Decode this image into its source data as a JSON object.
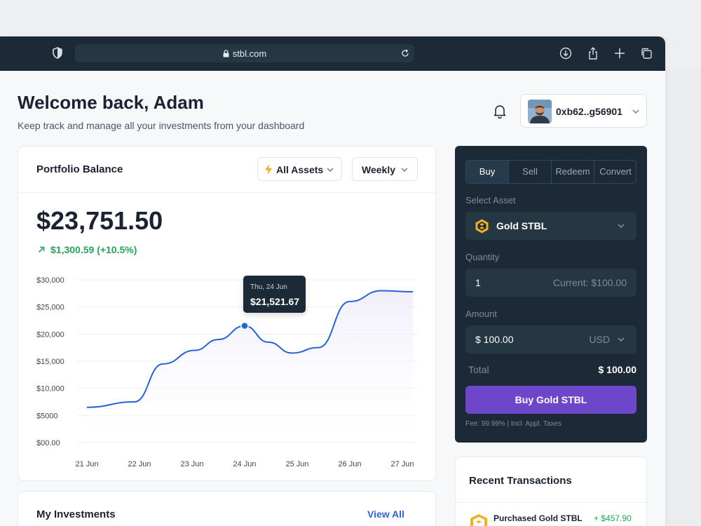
{
  "browser": {
    "url": "stbl.com"
  },
  "header": {
    "welcome": "Welcome back, Adam",
    "subtitle": "Keep track and manage all your investments from your dashboard",
    "wallet_address": "0xb62..g56901"
  },
  "portfolio": {
    "title": "Portfolio Balance",
    "asset_filter": "All Assets",
    "period_filter": "Weekly",
    "balance": "$23,751.50",
    "change": "$1,300.59 (+10.5%)"
  },
  "chart_data": {
    "type": "area",
    "x": [
      "21 Jun",
      "22 Jun",
      "23 Jun",
      "24 Jun",
      "25 Jun",
      "26 Jun",
      "27 Jun"
    ],
    "y_tick_labels": [
      "$30,000",
      "$25,000",
      "$20,000",
      "$15,000",
      "$10,000",
      "$5000",
      "$00.00"
    ],
    "y_ticks": [
      30000,
      25000,
      20000,
      15000,
      10000,
      5000,
      0
    ],
    "ylim": [
      0,
      30000
    ],
    "series": [
      {
        "points": [
          [
            0,
            6500
          ],
          [
            0.9,
            7500
          ],
          [
            1.45,
            14500
          ],
          [
            2.05,
            17000
          ],
          [
            2.5,
            19000
          ],
          [
            3.0,
            21521.67
          ],
          [
            3.45,
            18500
          ],
          [
            3.9,
            16500
          ],
          [
            4.4,
            17500
          ],
          [
            5.0,
            26000
          ],
          [
            5.6,
            28000
          ],
          [
            6.2,
            27800
          ]
        ]
      }
    ],
    "tooltip": {
      "date": "Thu, 24 Jun",
      "value": "$21,521.67",
      "x": 3.0,
      "y": 21521.67
    },
    "grid": true,
    "line_color": "#2563d8",
    "fill_color": "#f1eefa"
  },
  "investments": {
    "title": "My Investments",
    "view_all": "View All"
  },
  "trade": {
    "tabs": [
      "Buy",
      "Sell",
      "Redeem",
      "Convert"
    ],
    "active_tab": "Buy",
    "select_asset_label": "Select Asset",
    "asset": "Gold STBL",
    "quantity_label": "Quantity",
    "quantity": "1",
    "quantity_current": "Current: $100.00",
    "amount_label": "Amount",
    "amount": "$ 100.00",
    "currency": "USD",
    "total_label": "Total",
    "total": "$ 100.00",
    "buy_button": "Buy Gold STBL",
    "fee": "Fee: 99.99% | Incl. Appl. Taxes"
  },
  "recent": {
    "title": "Recent Transactions",
    "items": [
      {
        "label": "Purchased Gold STBL",
        "amount": "+ $457.90"
      }
    ]
  },
  "colors": {
    "dark": "#1b2a36",
    "accent_purple": "#6e46c9",
    "positive_green": "#22a55b",
    "link_blue": "#2a64d6"
  }
}
